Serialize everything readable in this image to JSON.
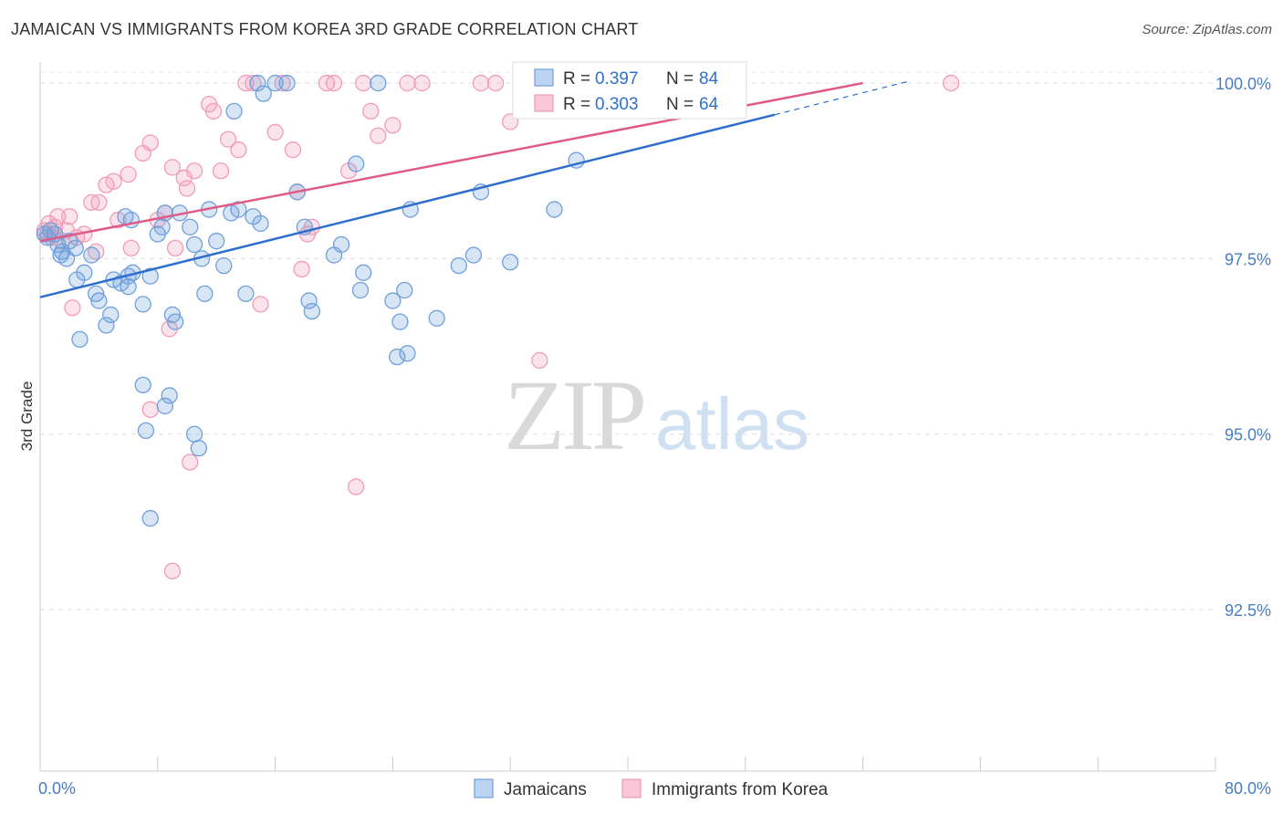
{
  "chart_data": {
    "type": "scatter",
    "title": "JAMAICAN VS IMMIGRANTS FROM KOREA 3RD GRADE CORRELATION CHART",
    "source": "Source: ZipAtlas.com",
    "ylabel": "3rd Grade",
    "xlim": [
      0,
      80
    ],
    "ylim": [
      90.2,
      100.3
    ],
    "x_tick_labels": [
      "0.0%",
      "80.0%"
    ],
    "y_ticks": [
      {
        "value": 100.0,
        "label": "100.0%"
      },
      {
        "value": 97.5,
        "label": "97.5%"
      },
      {
        "value": 95.0,
        "label": "95.0%"
      },
      {
        "value": 92.5,
        "label": "92.5%"
      }
    ],
    "watermark": {
      "zip": "ZIP",
      "atlas": "atlas"
    },
    "legend": {
      "r_label": "R =",
      "n_label": "N =",
      "entries": [
        {
          "r": "0.397",
          "n": "84"
        },
        {
          "r": "0.303",
          "n": "64"
        }
      ]
    },
    "series": [
      {
        "name": "Jamaicans",
        "color": "#6fa0dc",
        "line_color": "#2f6fcc",
        "trend": {
          "x0": 0,
          "y0": 96.95,
          "x1": 50,
          "y1": 99.55,
          "dash_x1": 59,
          "dash_y1": 100.02
        },
        "points": [
          [
            0.3,
            97.85
          ],
          [
            0.5,
            97.8
          ],
          [
            0.7,
            97.9
          ],
          [
            1.0,
            97.85
          ],
          [
            1.2,
            97.7
          ],
          [
            1.5,
            97.6
          ],
          [
            2.0,
            97.75
          ],
          [
            1.8,
            97.5
          ],
          [
            1.4,
            97.55
          ],
          [
            2.4,
            97.65
          ],
          [
            3.0,
            97.3
          ],
          [
            2.5,
            97.2
          ],
          [
            3.5,
            97.55
          ],
          [
            3.8,
            97.0
          ],
          [
            4.0,
            96.9
          ],
          [
            4.5,
            96.55
          ],
          [
            2.7,
            96.35
          ],
          [
            4.8,
            96.7
          ],
          [
            5.0,
            97.2
          ],
          [
            5.5,
            97.15
          ],
          [
            6.0,
            97.1
          ],
          [
            6.3,
            97.3
          ],
          [
            6.2,
            98.05
          ],
          [
            5.8,
            98.1
          ],
          [
            7.0,
            96.85
          ],
          [
            7.5,
            97.25
          ],
          [
            8.0,
            97.85
          ],
          [
            8.3,
            97.95
          ],
          [
            8.5,
            98.15
          ],
          [
            9.0,
            96.7
          ],
          [
            9.2,
            96.6
          ],
          [
            9.5,
            98.15
          ],
          [
            10.2,
            97.95
          ],
          [
            11.0,
            97.5
          ],
          [
            11.2,
            97.0
          ],
          [
            10.5,
            97.7
          ],
          [
            12.0,
            97.75
          ],
          [
            11.5,
            98.2
          ],
          [
            12.5,
            97.4
          ],
          [
            13.0,
            98.15
          ],
          [
            13.5,
            98.2
          ],
          [
            14.0,
            97.0
          ],
          [
            14.5,
            98.1
          ],
          [
            15.0,
            98.0
          ],
          [
            13.2,
            99.6
          ],
          [
            14.8,
            100.0
          ],
          [
            15.2,
            99.85
          ],
          [
            16.0,
            100.0
          ],
          [
            16.8,
            100.0
          ],
          [
            17.5,
            98.45
          ],
          [
            18.0,
            97.95
          ],
          [
            18.5,
            96.75
          ],
          [
            18.3,
            96.9
          ],
          [
            20.0,
            97.55
          ],
          [
            20.5,
            97.7
          ],
          [
            21.5,
            98.85
          ],
          [
            21.8,
            97.05
          ],
          [
            22.0,
            97.3
          ],
          [
            23.0,
            100.0
          ],
          [
            24.0,
            96.9
          ],
          [
            24.3,
            96.1
          ],
          [
            24.5,
            96.6
          ],
          [
            24.8,
            97.05
          ],
          [
            25.0,
            96.15
          ],
          [
            25.2,
            98.2
          ],
          [
            27.0,
            96.65
          ],
          [
            28.5,
            97.4
          ],
          [
            29.5,
            97.55
          ],
          [
            30.0,
            98.45
          ],
          [
            32.0,
            97.45
          ],
          [
            35.0,
            98.2
          ],
          [
            36.0,
            100.0
          ],
          [
            38.0,
            100.0
          ],
          [
            38.5,
            100.0
          ],
          [
            42.0,
            100.0
          ],
          [
            36.5,
            98.9
          ],
          [
            7.0,
            95.7
          ],
          [
            7.2,
            95.05
          ],
          [
            8.5,
            95.4
          ],
          [
            8.8,
            95.55
          ],
          [
            10.5,
            95.0
          ],
          [
            10.8,
            94.8
          ],
          [
            7.5,
            93.8
          ],
          [
            6.0,
            97.25
          ]
        ]
      },
      {
        "name": "Immigrants from Korea",
        "color": "#f29bb8",
        "line_color": "#e05a86",
        "trend": {
          "x0": 0,
          "y0": 97.75,
          "x1": 56,
          "y1": 100.0
        },
        "points": [
          [
            0.3,
            97.9
          ],
          [
            0.5,
            97.85
          ],
          [
            0.6,
            98.0
          ],
          [
            0.8,
            97.8
          ],
          [
            1.0,
            97.95
          ],
          [
            1.2,
            98.1
          ],
          [
            1.5,
            97.75
          ],
          [
            1.8,
            97.9
          ],
          [
            2.0,
            98.1
          ],
          [
            2.5,
            97.8
          ],
          [
            2.2,
            96.8
          ],
          [
            3.0,
            97.85
          ],
          [
            3.5,
            98.3
          ],
          [
            3.8,
            97.6
          ],
          [
            4.0,
            98.3
          ],
          [
            4.5,
            98.55
          ],
          [
            5.0,
            98.6
          ],
          [
            5.3,
            98.05
          ],
          [
            6.0,
            98.7
          ],
          [
            6.2,
            97.65
          ],
          [
            7.0,
            99.0
          ],
          [
            7.5,
            99.15
          ],
          [
            8.0,
            98.05
          ],
          [
            8.5,
            98.15
          ],
          [
            9.0,
            98.8
          ],
          [
            8.8,
            96.5
          ],
          [
            9.2,
            97.65
          ],
          [
            10.0,
            98.5
          ],
          [
            9.8,
            98.65
          ],
          [
            10.5,
            98.75
          ],
          [
            11.5,
            99.7
          ],
          [
            11.8,
            99.6
          ],
          [
            12.3,
            98.75
          ],
          [
            12.8,
            99.2
          ],
          [
            13.5,
            99.05
          ],
          [
            14.0,
            100.0
          ],
          [
            14.5,
            100.0
          ],
          [
            15.0,
            96.85
          ],
          [
            16.0,
            99.3
          ],
          [
            16.5,
            100.0
          ],
          [
            17.2,
            99.05
          ],
          [
            17.5,
            98.45
          ],
          [
            17.8,
            97.35
          ],
          [
            18.5,
            97.95
          ],
          [
            18.2,
            97.85
          ],
          [
            19.5,
            100.0
          ],
          [
            20.0,
            100.0
          ],
          [
            21.0,
            98.75
          ],
          [
            22.0,
            100.0
          ],
          [
            22.5,
            99.6
          ],
          [
            23.0,
            99.25
          ],
          [
            24.0,
            99.4
          ],
          [
            25.0,
            100.0
          ],
          [
            26.0,
            100.0
          ],
          [
            30.0,
            100.0
          ],
          [
            31.0,
            100.0
          ],
          [
            32.0,
            99.45
          ],
          [
            34.0,
            96.05
          ],
          [
            44.0,
            100.0
          ],
          [
            62.0,
            100.0
          ],
          [
            7.5,
            95.35
          ],
          [
            10.2,
            94.6
          ],
          [
            21.5,
            94.25
          ],
          [
            9.0,
            93.05
          ]
        ]
      }
    ]
  }
}
